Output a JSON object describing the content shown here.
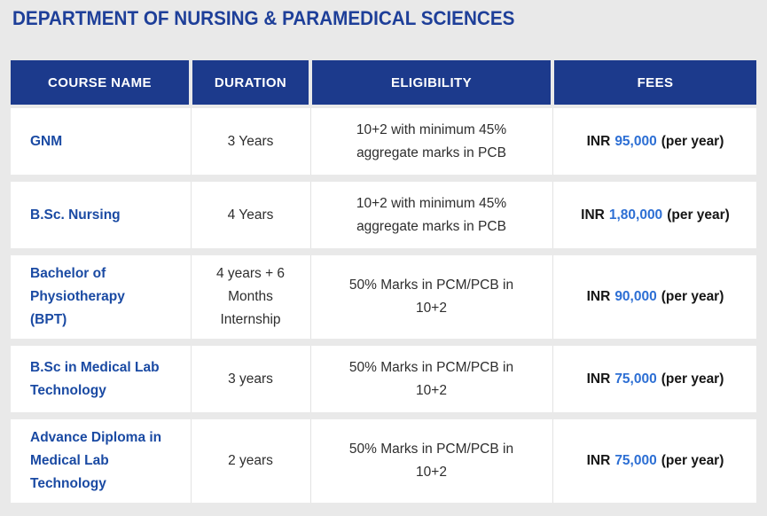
{
  "page": {
    "title": "DEPARTMENT OF NURSING & PARAMEDICAL SCIENCES"
  },
  "colors": {
    "page_background": "#e9e9e9",
    "header_background": "#1c3a8c",
    "title_text": "#1e3f99",
    "course_link_text": "#1a4aa3",
    "fee_amount_text": "#2d6fd4",
    "body_text": "#2e2e2e",
    "header_text": "#ffffff"
  },
  "table": {
    "headers": [
      "COURSE NAME",
      "DURATION",
      "ELIGIBILITY",
      "FEES"
    ],
    "rows": [
      {
        "course": "GNM",
        "duration": "3 Years",
        "eligibility": "10+2 with minimum 45% aggregate marks in PCB",
        "fee_currency": "INR",
        "fee_amount": "95,000",
        "fee_suffix": "(per year)"
      },
      {
        "course": "B.Sc. Nursing",
        "duration": "4 Years",
        "eligibility": "10+2 with minimum 45% aggregate marks in PCB",
        "fee_currency": "INR",
        "fee_amount": "1,80,000",
        "fee_suffix": "(per year)"
      },
      {
        "course": "Bachelor of Physiotherapy (BPT)",
        "duration": "4 years + 6 Months Internship",
        "eligibility": "50% Marks in PCM/PCB in 10+2",
        "fee_currency": "INR",
        "fee_amount": "90,000",
        "fee_suffix": "(per year)"
      },
      {
        "course": "B.Sc in Medical Lab Technology",
        "duration": "3 years",
        "eligibility": "50% Marks in PCM/PCB in 10+2",
        "fee_currency": "INR",
        "fee_amount": "75,000",
        "fee_suffix": "(per year)"
      },
      {
        "course": "Advance Diploma in Medical Lab Technology",
        "duration": "2 years",
        "eligibility": "50% Marks in PCM/PCB in 10+2",
        "fee_currency": "INR",
        "fee_amount": "75,000",
        "fee_suffix": "(per year)"
      }
    ]
  }
}
